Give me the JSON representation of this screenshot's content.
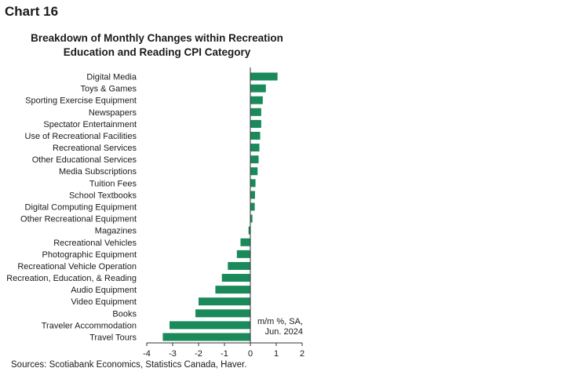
{
  "chart_label": "Chart 16",
  "source": "Sources: Scotiabank Economics, Statistics Canada, Haver.",
  "chart_data": {
    "type": "bar",
    "orientation": "horizontal",
    "title_line1": "Breakdown of Monthly Changes within Recreation",
    "title_line2": "Education and Reading CPI Category",
    "unit_line1": "m/m %, SA,",
    "unit_line2": "Jun. 2024",
    "bar_color": "#1b8a5a",
    "xlim": [
      -4,
      2
    ],
    "x_ticks": [
      "-4",
      "-3",
      "-2",
      "-1",
      "0",
      "1",
      "2"
    ],
    "grid": false,
    "categories": [
      "Digital Media",
      "Toys & Games",
      "Sporting Exercise Equipment",
      "Newspapers",
      "Spectator Entertainment",
      "Use of Recreational Facilities",
      "Recreational Services",
      "Other Educational Services",
      "Media Subscriptions",
      "Tuition Fees",
      "School Textbooks",
      "Digital Computing Equipment",
      "Other Recreational Equipment",
      "Magazines",
      "Recreational Vehicles",
      "Photographic Equipment",
      "Recreational Vehicle Operation",
      "Recreation, Education, & Reading",
      "Audio Equipment",
      "Video Equipment",
      "Books",
      "Traveler Accommodation",
      "Travel Tours"
    ],
    "values": [
      1.05,
      0.6,
      0.48,
      0.42,
      0.42,
      0.38,
      0.35,
      0.32,
      0.28,
      0.2,
      0.18,
      0.17,
      0.08,
      -0.07,
      -0.38,
      -0.52,
      -0.87,
      -1.1,
      -1.35,
      -2.0,
      -2.12,
      -3.12,
      -3.38
    ]
  }
}
